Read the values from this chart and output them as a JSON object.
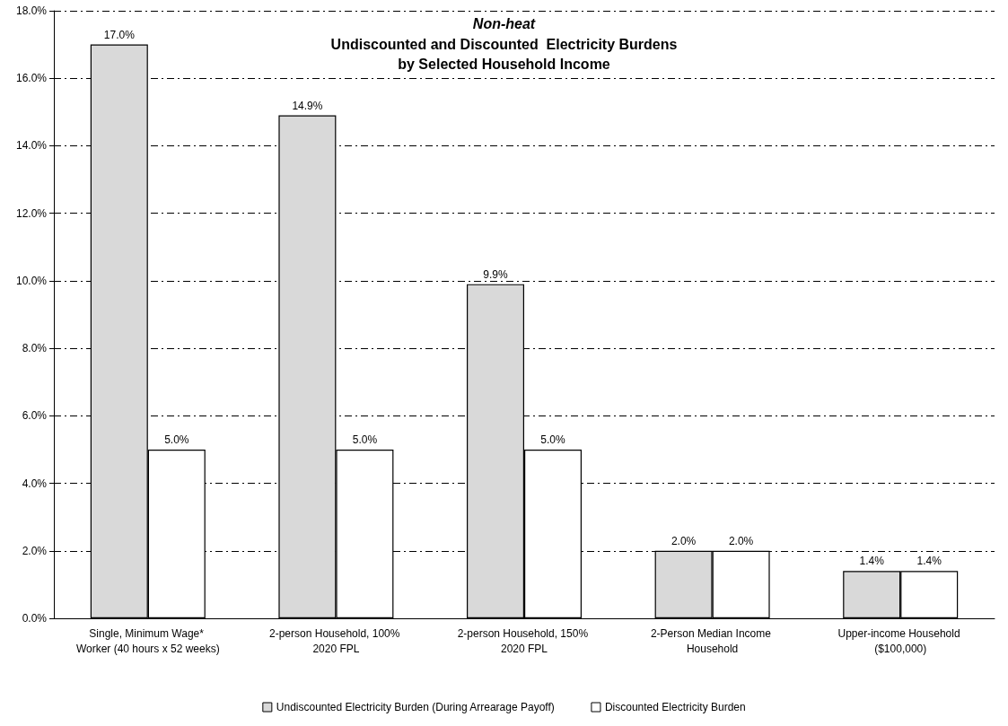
{
  "chart_data": {
    "type": "bar",
    "title": "Non-heat",
    "subtitle": "Undiscounted and Discounted  Electricity Burdens\nby Selected Household Income",
    "categories": [
      "Single, Minimum Wage* Worker (40 hours x 52 weeks)",
      "2-person Household, 100% 2020 FPL",
      "2-person Household, 150% 2020 FPL",
      "2-Person Median Income Household",
      "Upper-income Household ($100,000)"
    ],
    "series": [
      {
        "name": "Undiscounted Electricity Burden (During Arrearage Payoff)",
        "color": "#d9d9d9",
        "values": [
          17.0,
          14.9,
          9.9,
          2.0,
          1.4
        ],
        "value_labels": [
          "17.0%",
          "14.9%",
          "9.9%",
          "2.0%",
          "1.4%"
        ]
      },
      {
        "name": "Discounted Electricity Burden",
        "color": "#ffffff",
        "values": [
          5.0,
          5.0,
          5.0,
          2.0,
          1.4
        ],
        "value_labels": [
          "5.0%",
          "5.0%",
          "5.0%",
          "2.0%",
          "1.4%"
        ]
      }
    ],
    "ylim": [
      0,
      18
    ],
    "yticks": [
      {
        "value": 0,
        "label": "0.0%"
      },
      {
        "value": 2,
        "label": "2.0%"
      },
      {
        "value": 4,
        "label": "4.0%"
      },
      {
        "value": 6,
        "label": "6.0%"
      },
      {
        "value": 8,
        "label": "8.0%"
      },
      {
        "value": 10,
        "label": "10.0%"
      },
      {
        "value": 12,
        "label": "12.0%"
      },
      {
        "value": 14,
        "label": "14.0%"
      },
      {
        "value": 16,
        "label": "16.0%"
      },
      {
        "value": 18,
        "label": "18.0%"
      }
    ],
    "grid": "y",
    "legend": "bottom",
    "line_style": "dashed"
  }
}
